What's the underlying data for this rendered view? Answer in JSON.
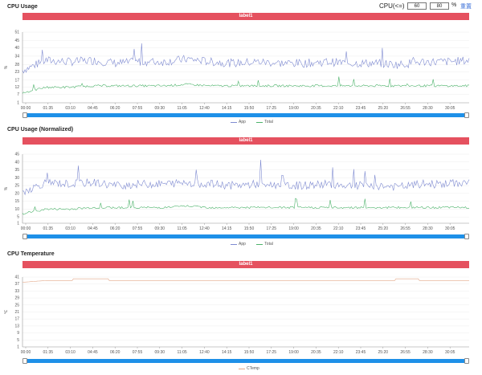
{
  "controls": {
    "cpu_label": "CPU(<=)",
    "min_value": "60",
    "max_value": "80",
    "unit": "%",
    "reset_label": "重置"
  },
  "colors": {
    "app": "#7f8bd1",
    "total": "#4db36b",
    "temp": "#e3a98a",
    "label_bar": "#e5515f",
    "slider": "#1e90e8"
  },
  "charts": [
    {
      "title": "CPU Usage",
      "label": "label1",
      "ylabel": "%",
      "yticks": [
        1,
        7,
        12,
        17,
        23,
        28,
        34,
        40,
        45,
        51
      ],
      "xticks": [
        "00:00",
        "01:35",
        "03:10",
        "04:45",
        "06:20",
        "07:55",
        "09:30",
        "11:05",
        "12:40",
        "14:15",
        "15:50",
        "17:25",
        "19:00",
        "20:35",
        "22:10",
        "23:45",
        "25:20",
        "26:55",
        "28:30",
        "30:05"
      ],
      "legend": [
        "App",
        "Total"
      ]
    },
    {
      "title": "CPU Usage (Normalized)",
      "label": "label1",
      "ylabel": "%",
      "yticks": [
        1,
        5,
        10,
        15,
        20,
        25,
        30,
        35,
        40,
        45
      ],
      "xticks": [
        "00:00",
        "01:35",
        "03:10",
        "04:45",
        "06:20",
        "07:55",
        "09:30",
        "11:05",
        "12:40",
        "14:15",
        "15:50",
        "17:25",
        "19:00",
        "20:35",
        "22:10",
        "23:45",
        "25:20",
        "26:55",
        "28:30",
        "30:05"
      ],
      "legend": [
        "App",
        "Total"
      ]
    },
    {
      "title": "CPU Temperature",
      "label": "label1",
      "ylabel": "℃",
      "yticks": [
        1,
        5,
        9,
        13,
        17,
        21,
        25,
        29,
        33,
        37,
        41
      ],
      "xticks": [
        "00:00",
        "01:35",
        "03:10",
        "04:45",
        "06:20",
        "07:55",
        "09:30",
        "11:05",
        "12:40",
        "14:15",
        "15:50",
        "17:25",
        "19:00",
        "20:35",
        "22:10",
        "23:45",
        "25:20",
        "26:55",
        "28:30",
        "30:05"
      ],
      "legend": [
        "CTemp"
      ]
    }
  ],
  "chart_data": [
    {
      "type": "line",
      "title": "CPU Usage",
      "ylabel": "%",
      "ylim": [
        1,
        51
      ],
      "x": [
        "00:00",
        "01:35",
        "03:10",
        "04:45",
        "06:20",
        "07:55",
        "09:30",
        "11:05",
        "12:40",
        "14:15",
        "15:50",
        "17:25",
        "19:00",
        "20:35",
        "22:10",
        "23:45",
        "25:20",
        "26:55",
        "28:30",
        "30:05"
      ],
      "series": [
        {
          "name": "App",
          "values": [
            24,
            31,
            30,
            31,
            29,
            30,
            30,
            32,
            30,
            29,
            30,
            29,
            29,
            30,
            29,
            29,
            28,
            30,
            30,
            31
          ]
        },
        {
          "name": "Total",
          "values": [
            8,
            12,
            12,
            13,
            13,
            13,
            13,
            14,
            13,
            13,
            13,
            13,
            13,
            13,
            13,
            13,
            13,
            13,
            13,
            13
          ]
        }
      ]
    },
    {
      "type": "line",
      "title": "CPU Usage (Normalized)",
      "ylabel": "%",
      "ylim": [
        1,
        45
      ],
      "x": [
        "00:00",
        "01:35",
        "03:10",
        "04:45",
        "06:20",
        "07:55",
        "09:30",
        "11:05",
        "12:40",
        "14:15",
        "15:50",
        "17:25",
        "19:00",
        "20:35",
        "22:10",
        "23:45",
        "25:20",
        "26:55",
        "28:30",
        "30:05"
      ],
      "series": [
        {
          "name": "App",
          "values": [
            21,
            27,
            26,
            27,
            25,
            26,
            26,
            27,
            26,
            25,
            26,
            25,
            25,
            26,
            25,
            25,
            24,
            26,
            26,
            27
          ]
        },
        {
          "name": "Total",
          "values": [
            7,
            10,
            10,
            11,
            11,
            11,
            11,
            12,
            11,
            11,
            11,
            11,
            11,
            11,
            11,
            11,
            11,
            11,
            11,
            11
          ]
        }
      ]
    },
    {
      "type": "line",
      "title": "CPU Temperature",
      "ylabel": "℃",
      "ylim": [
        1,
        41
      ],
      "x": [
        "00:00",
        "01:35",
        "03:10",
        "04:45",
        "06:20",
        "07:55",
        "09:30",
        "11:05",
        "12:40",
        "14:15",
        "15:50",
        "17:25",
        "19:00",
        "20:35",
        "22:10",
        "23:45",
        "25:20",
        "26:55",
        "28:30",
        "30:05"
      ],
      "series": [
        {
          "name": "CTemp",
          "values": [
            38,
            39,
            39,
            39,
            39,
            39,
            39,
            39,
            39,
            39,
            39,
            39,
            39,
            39,
            39,
            39,
            39,
            39,
            39,
            39
          ]
        }
      ]
    }
  ]
}
